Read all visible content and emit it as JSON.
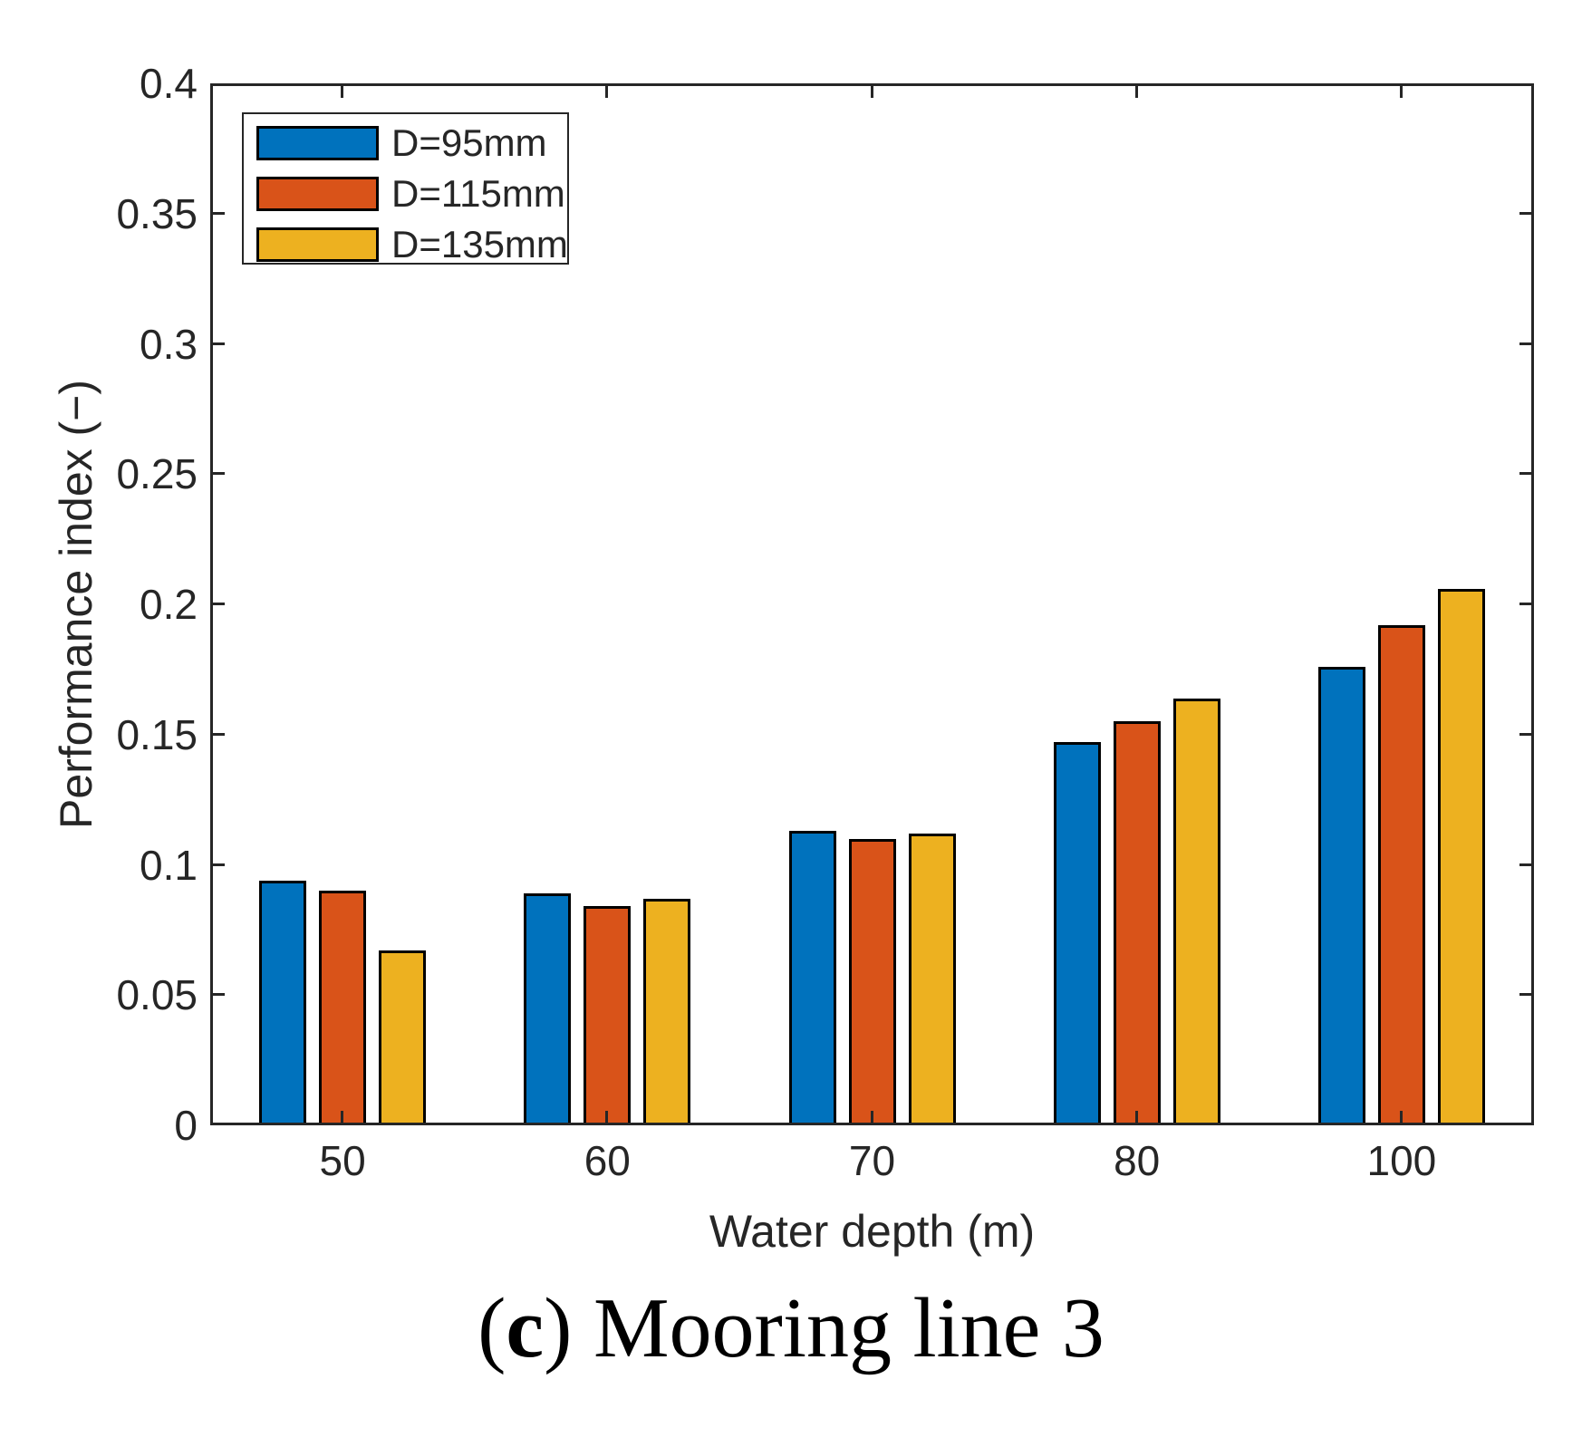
{
  "caption": {
    "open": "(",
    "letter": "c",
    "close": ")",
    "text": "Mooring line 3"
  },
  "chart_data": {
    "type": "bar",
    "title": "",
    "xlabel": "Water depth (m)",
    "ylabel": "Performance index (−)",
    "categories": [
      "50",
      "60",
      "70",
      "80",
      "100"
    ],
    "series": [
      {
        "name": "D=95mm",
        "color": "#0072BD",
        "values": [
          0.094,
          0.089,
          0.113,
          0.147,
          0.176
        ]
      },
      {
        "name": "D=115mm",
        "color": "#D95319",
        "values": [
          0.09,
          0.084,
          0.11,
          0.155,
          0.192
        ]
      },
      {
        "name": "D=135mm",
        "color": "#EDB120",
        "values": [
          0.067,
          0.087,
          0.112,
          0.164,
          0.206
        ]
      }
    ],
    "ylim": [
      0,
      0.4
    ],
    "ytick_step": 0.05,
    "ytick_labels": [
      "0",
      "0.05",
      "0.1",
      "0.15",
      "0.2",
      "0.25",
      "0.3",
      "0.35",
      "0.4"
    ],
    "legend_position": "top-left",
    "grid": false,
    "axis_color": "#262626",
    "bar_edge_color": "#000000"
  }
}
